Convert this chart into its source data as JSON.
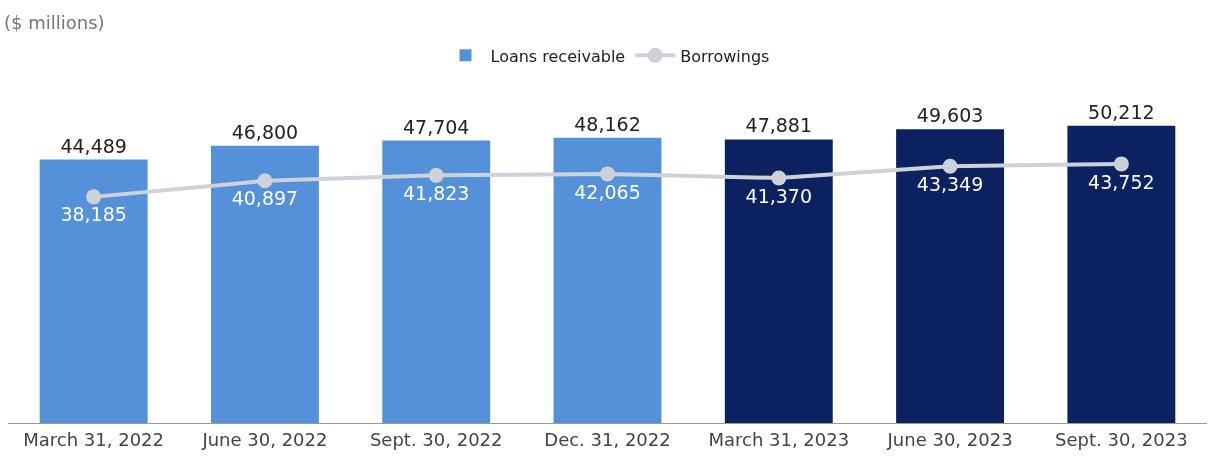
{
  "chart_data": {
    "type": "bar",
    "categories": [
      "March 31, 2022",
      "June 30, 2022",
      "Sept. 30, 2022",
      "Dec. 31, 2022",
      "March 31, 2023",
      "June 30, 2023",
      "Sept. 30, 2023"
    ],
    "series": [
      {
        "name": "Loans receivable",
        "colors": [
          "#5591d9",
          "#5591d9",
          "#5591d9",
          "#5591d9",
          "#0b2160",
          "#0b2160",
          "#0b2160"
        ],
        "values": [
          44489,
          46800,
          47704,
          48162,
          47881,
          49603,
          50212
        ],
        "value_labels": [
          "44,489",
          "46,800",
          "47,704",
          "48,162",
          "47,881",
          "49,603",
          "50,212"
        ]
      },
      {
        "name": "Borrowings",
        "type": "line",
        "color": "#cdd2d8",
        "marker": "circle",
        "values": [
          38185,
          40897,
          41823,
          42065,
          41370,
          43349,
          43752
        ],
        "value_labels": [
          "38,185",
          "40,897",
          "41,823",
          "42,065",
          "41,370",
          "43,349",
          "43,752"
        ]
      }
    ],
    "tick_labels": "x",
    "grid": false,
    "legend": "top",
    "annotations": [
      "($ millions)"
    ]
  }
}
